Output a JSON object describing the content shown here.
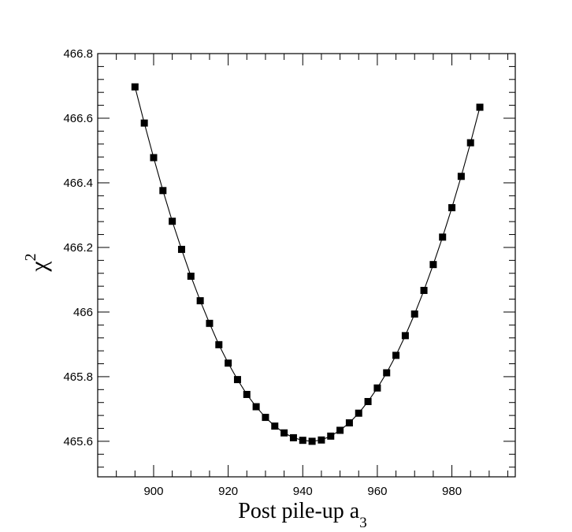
{
  "chart_data": {
    "type": "scatter",
    "title": "",
    "xlabel": "Post pile-up a",
    "xlabel_subscript": "3",
    "ylabel": "χ",
    "ylabel_superscript": "2",
    "xlim": [
      885,
      997
    ],
    "ylim": [
      465.49,
      466.8
    ],
    "x_ticks": [
      {
        "value": 900,
        "label": "900"
      },
      {
        "value": 920,
        "label": "920"
      },
      {
        "value": 940,
        "label": "940"
      },
      {
        "value": 960,
        "label": "960"
      },
      {
        "value": 980,
        "label": "980"
      }
    ],
    "y_ticks": [
      {
        "value": 465.6,
        "label": "465.6"
      },
      {
        "value": 465.8,
        "label": "465.8"
      },
      {
        "value": 466.0,
        "label": "466"
      },
      {
        "value": 466.2,
        "label": "466.2"
      },
      {
        "value": 466.4,
        "label": "466.4"
      },
      {
        "value": 466.6,
        "label": "466.6"
      },
      {
        "value": 466.8,
        "label": "466.8"
      }
    ],
    "grid": false,
    "marker": "square",
    "connect_points": true,
    "series": [
      {
        "color": "#000000",
        "x": [
          895,
          897.5,
          900,
          902.5,
          905,
          907.5,
          910,
          912.5,
          915,
          917.5,
          920,
          922.5,
          925,
          927.5,
          930,
          932.5,
          935,
          937.5,
          940,
          942.5,
          945,
          947.5,
          950,
          952.5,
          955,
          957.5,
          960,
          962.5,
          965,
          967.5,
          970,
          972.5,
          975,
          977.5,
          980,
          982.5,
          985,
          987.5
        ],
        "y": [
          466.697,
          466.585,
          466.478,
          466.376,
          466.281,
          466.194,
          466.111,
          466.035,
          465.965,
          465.899,
          465.842,
          465.791,
          465.745,
          465.707,
          465.674,
          465.647,
          465.626,
          465.611,
          465.603,
          465.6,
          465.604,
          465.616,
          465.634,
          465.657,
          465.687,
          465.723,
          465.765,
          465.812,
          465.866,
          465.927,
          465.994,
          466.067,
          466.147,
          466.232,
          466.323,
          466.42,
          466.524,
          466.634
        ]
      }
    ]
  }
}
